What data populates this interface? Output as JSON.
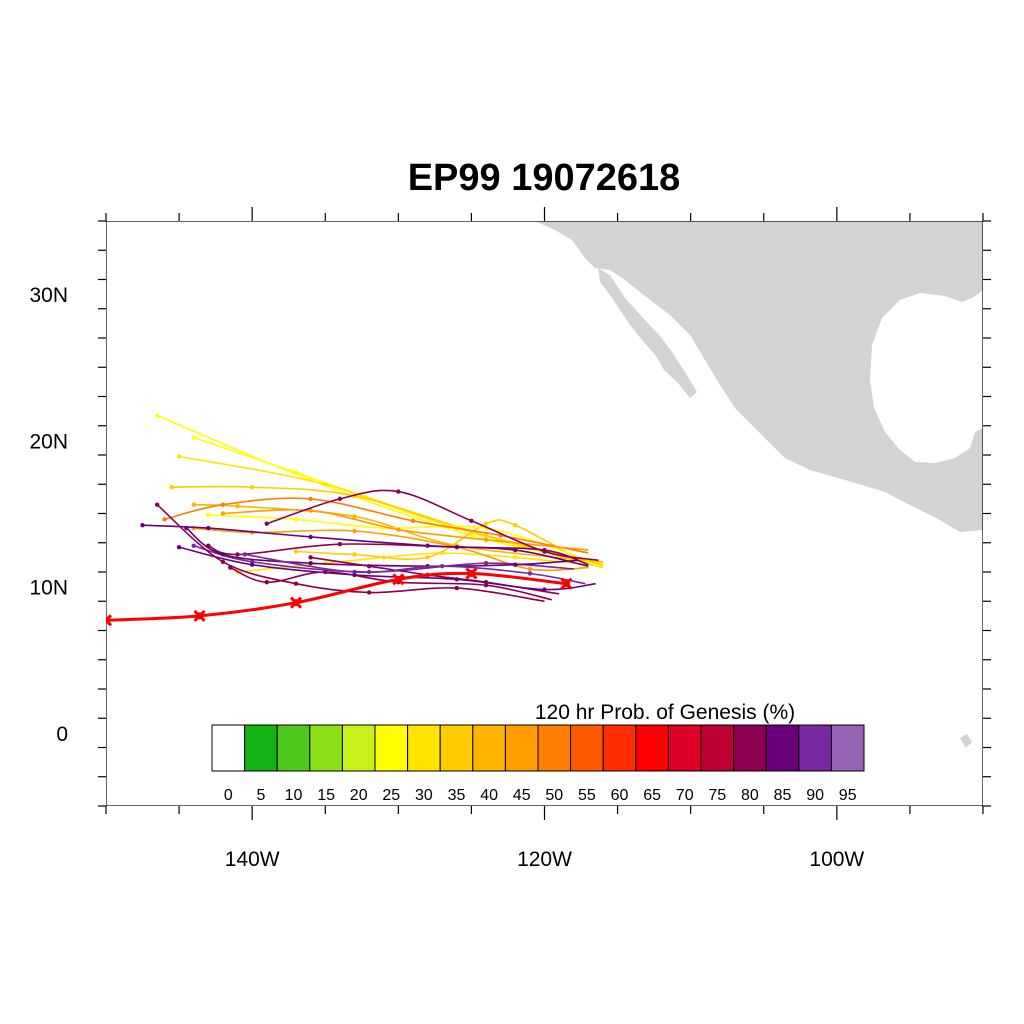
{
  "title": "EP99 19072618",
  "map": {
    "lon_range": [
      -150,
      -90
    ],
    "lat_range": [
      -5,
      35
    ],
    "land_color": "#d3d3d3",
    "lat_labels": [
      "0",
      "10N",
      "20N",
      "30N"
    ],
    "lon_labels": [
      "140W",
      "120W",
      "100W"
    ]
  },
  "colorbar": {
    "title": "120 hr Prob. of Genesis (%)",
    "labels": [
      "0",
      "5",
      "10",
      "15",
      "20",
      "25",
      "30",
      "35",
      "40",
      "45",
      "50",
      "55",
      "60",
      "65",
      "70",
      "75",
      "80",
      "85",
      "90",
      "95"
    ],
    "colors": [
      "#ffffff",
      "#13b413",
      "#4ec81a",
      "#8ce01a",
      "#c8f01a",
      "#ffff00",
      "#ffe400",
      "#ffcc00",
      "#ffb400",
      "#ff9c00",
      "#ff7d00",
      "#ff5a00",
      "#ff2d00",
      "#ff0000",
      "#dc0028",
      "#be0032",
      "#8c0050",
      "#6a0078",
      "#7828a0",
      "#9664b4"
    ]
  },
  "best_track": {
    "color": "#ff0000",
    "points": [
      [
        -150,
        7.7
      ],
      [
        -143.6,
        8.0
      ],
      [
        -137.0,
        8.9
      ],
      [
        -130.0,
        10.5
      ],
      [
        -125.0,
        10.9
      ],
      [
        -118.5,
        10.2
      ]
    ]
  },
  "ensemble_tracks": [
    {
      "color": "#ffff00",
      "points": [
        [
          -116,
          11.6
        ],
        [
          -125,
          13.5
        ],
        [
          -136,
          17.3
        ],
        [
          -146.5,
          21.7
        ]
      ]
    },
    {
      "color": "#ffff00",
      "points": [
        [
          -116,
          11.4
        ],
        [
          -127,
          14.3
        ],
        [
          -137,
          17.8
        ],
        [
          -144,
          20.2
        ]
      ]
    },
    {
      "color": "#ffe400",
      "points": [
        [
          -116,
          11.3
        ],
        [
          -126,
          14.0
        ],
        [
          -135,
          17.0
        ],
        [
          -145,
          18.9
        ]
      ]
    },
    {
      "color": "#ffcc00",
      "points": [
        [
          -116,
          11.5
        ],
        [
          -124,
          13.5
        ],
        [
          -133,
          16.2
        ],
        [
          -140,
          16.8
        ],
        [
          -145.5,
          16.8
        ]
      ]
    },
    {
      "color": "#ffb400",
      "points": [
        [
          -116,
          11.7
        ],
        [
          -126,
          12.8
        ],
        [
          -133,
          14.8
        ],
        [
          -141,
          15.5
        ],
        [
          -144,
          15.6
        ]
      ]
    },
    {
      "color": "#ffe400",
      "points": [
        [
          -116,
          11.4
        ],
        [
          -122,
          12.0
        ],
        [
          -127,
          12.3
        ],
        [
          -131,
          12.0
        ],
        [
          -135,
          11.6
        ],
        [
          -141,
          11.0
        ]
      ]
    },
    {
      "color": "#ffcc00",
      "points": [
        [
          -117,
          11.5
        ],
        [
          -122,
          14.2
        ],
        [
          -124,
          14.3
        ],
        [
          -128,
          12.0
        ],
        [
          -133,
          12.2
        ],
        [
          -137,
          12.4
        ]
      ]
    },
    {
      "color": "#ffff00",
      "points": [
        [
          -117,
          11.8
        ],
        [
          -124,
          14.0
        ],
        [
          -131,
          14.0
        ],
        [
          -137,
          14.6
        ],
        [
          -143,
          14.9
        ]
      ]
    },
    {
      "color": "#ff9c00",
      "points": [
        [
          -117,
          11.3
        ],
        [
          -121,
          11.2
        ],
        [
          -126,
          12.7
        ],
        [
          -133,
          13.8
        ],
        [
          -140,
          13.7
        ],
        [
          -144,
          14.0
        ]
      ]
    },
    {
      "color": "#ff7d00",
      "points": [
        [
          -117,
          12.3
        ],
        [
          -123,
          13.5
        ],
        [
          -129,
          14.5
        ],
        [
          -136,
          16.0
        ],
        [
          -142,
          15.6
        ],
        [
          -146,
          14.6
        ]
      ]
    },
    {
      "color": "#ff9c00",
      "points": [
        [
          -117,
          12.5
        ],
        [
          -124,
          13.2
        ],
        [
          -130,
          13.9
        ],
        [
          -136,
          15.2
        ],
        [
          -142,
          15.0
        ]
      ]
    },
    {
      "color": "#8c0050",
      "points": [
        [
          -116.3,
          11.8
        ],
        [
          -120,
          12.4
        ],
        [
          -125,
          14.5
        ],
        [
          -130,
          16.5
        ],
        [
          -134,
          16.0
        ],
        [
          -139,
          14.3
        ]
      ]
    },
    {
      "color": "#8c0050",
      "points": [
        [
          -117,
          11.5
        ],
        [
          -120,
          12.5
        ],
        [
          -126,
          12.7
        ],
        [
          -134,
          12.9
        ],
        [
          -141,
          12.2
        ],
        [
          -143,
          12.8
        ]
      ]
    },
    {
      "color": "#6a0078",
      "points": [
        [
          -117,
          11.4
        ],
        [
          -122,
          12.5
        ],
        [
          -128,
          12.8
        ],
        [
          -136,
          13.4
        ],
        [
          -143,
          14.0
        ],
        [
          -147.5,
          14.2
        ]
      ]
    },
    {
      "color": "#7828a0",
      "points": [
        [
          -118,
          11.2
        ],
        [
          -124,
          11.6
        ],
        [
          -132,
          11.0
        ],
        [
          -140,
          11.7
        ],
        [
          -144,
          12.8
        ]
      ]
    },
    {
      "color": "#6a0078",
      "points": [
        [
          -117.7,
          11.8
        ],
        [
          -122,
          11.5
        ],
        [
          -128,
          11.4
        ],
        [
          -136,
          11.6
        ],
        [
          -142,
          12.2
        ],
        [
          -144.5,
          14.0
        ]
      ]
    },
    {
      "color": "#8c0050",
      "points": [
        [
          -119,
          9.5
        ],
        [
          -124,
          10.3
        ],
        [
          -128,
          10.8
        ],
        [
          -132,
          11.4
        ],
        [
          -136,
          12.0
        ]
      ]
    },
    {
      "color": "#8c0050",
      "points": [
        [
          -119.5,
          9.1
        ],
        [
          -124,
          10.1
        ],
        [
          -130,
          10.3
        ],
        [
          -135,
          11.0
        ],
        [
          -139,
          10.3
        ],
        [
          -141.5,
          11.3
        ]
      ]
    },
    {
      "color": "#7828a0",
      "points": [
        [
          -117.2,
          10.2
        ],
        [
          -121,
          10.9
        ],
        [
          -127,
          11.4
        ],
        [
          -133,
          11.0
        ],
        [
          -140.5,
          12.2
        ]
      ]
    },
    {
      "color": "#6a0078",
      "points": [
        [
          -116.5,
          10.2
        ],
        [
          -120,
          9.8
        ],
        [
          -126,
          10.5
        ],
        [
          -133,
          10.8
        ],
        [
          -140,
          11.5
        ],
        [
          -145,
          12.7
        ]
      ]
    },
    {
      "color": "#8c0050",
      "points": [
        [
          -120,
          9.0
        ],
        [
          -126,
          9.9
        ],
        [
          -132,
          9.6
        ],
        [
          -137,
          10.2
        ],
        [
          -142,
          11.7
        ],
        [
          -146.5,
          15.6
        ]
      ]
    }
  ]
}
